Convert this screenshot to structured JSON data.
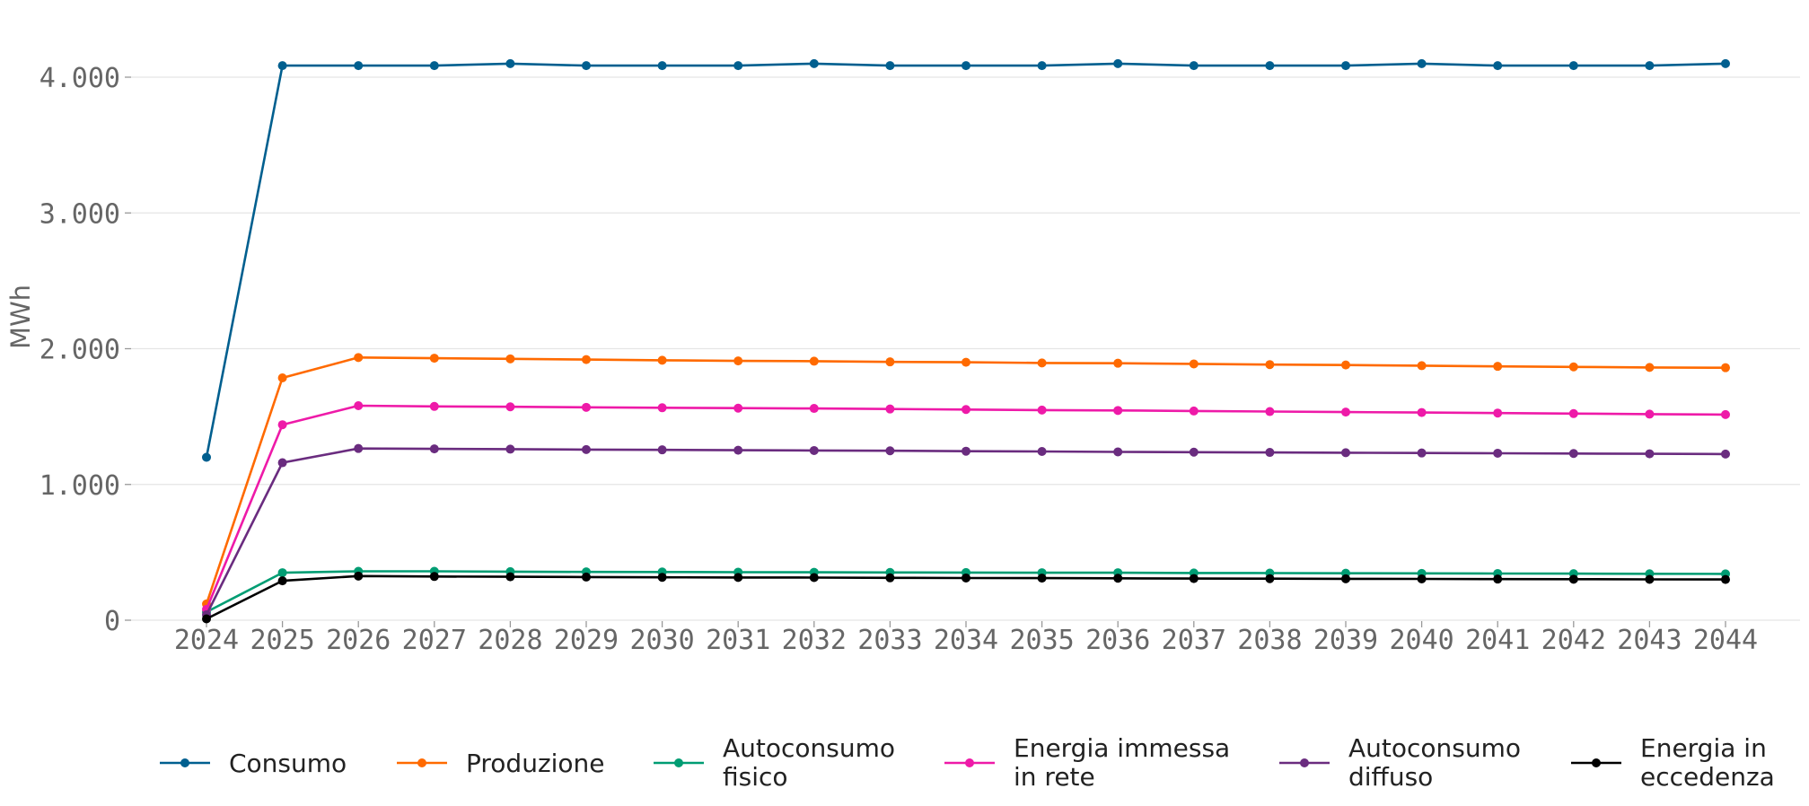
{
  "chart_data": {
    "type": "line",
    "title": "",
    "xlabel": "",
    "ylabel": "MWh",
    "ylim": [
      0,
      4400
    ],
    "yticks": [
      0,
      1000,
      2000,
      3000,
      4000
    ],
    "ytick_labels": [
      "0",
      "1.000",
      "2.000",
      "3.000",
      "4.000"
    ],
    "x": [
      "2024",
      "2025",
      "2026",
      "2027",
      "2028",
      "2029",
      "2030",
      "2031",
      "2032",
      "2033",
      "2034",
      "2035",
      "2036",
      "2037",
      "2038",
      "2039",
      "2040",
      "2041",
      "2042",
      "2043",
      "2044"
    ],
    "grid": "horizontal",
    "legend_position": "bottom",
    "series": [
      {
        "name": "Consumo",
        "color": "#005f8f",
        "values": [
          1200,
          4085,
          4085,
          4085,
          4100,
          4085,
          4085,
          4085,
          4100,
          4085,
          4085,
          4085,
          4100,
          4085,
          4085,
          4085,
          4100,
          4085,
          4085,
          4085,
          4100
        ]
      },
      {
        "name": "Produzione",
        "color": "#ff6a00",
        "values": [
          120,
          1785,
          1935,
          1930,
          1925,
          1920,
          1915,
          1910,
          1908,
          1903,
          1900,
          1895,
          1893,
          1888,
          1883,
          1880,
          1875,
          1870,
          1866,
          1862,
          1860
        ]
      },
      {
        "name": "Autoconsumo fisico",
        "color": "#009d73",
        "values": [
          60,
          350,
          360,
          360,
          358,
          356,
          355,
          354,
          353,
          352,
          351,
          350,
          350,
          348,
          347,
          346,
          345,
          344,
          343,
          342,
          341
        ]
      },
      {
        "name": "Energia immessa in rete",
        "color": "#ee1aa8",
        "values": [
          80,
          1440,
          1580,
          1575,
          1572,
          1568,
          1565,
          1562,
          1560,
          1556,
          1552,
          1548,
          1545,
          1541,
          1537,
          1533,
          1530,
          1526,
          1522,
          1518,
          1515
        ]
      },
      {
        "name": "Autoconsumo diffuso",
        "color": "#6a2c7f",
        "values": [
          40,
          1160,
          1265,
          1262,
          1260,
          1257,
          1255,
          1252,
          1250,
          1248,
          1245,
          1243,
          1240,
          1238,
          1236,
          1234,
          1232,
          1230,
          1228,
          1226,
          1224
        ]
      },
      {
        "name": "Energia in eccedenza",
        "color": "#000000",
        "values": [
          10,
          290,
          325,
          322,
          320,
          318,
          316,
          315,
          314,
          312,
          311,
          310,
          309,
          307,
          306,
          305,
          304,
          303,
          302,
          301,
          300
        ]
      }
    ],
    "legend_labels": [
      [
        "Consumo"
      ],
      [
        "Produzione"
      ],
      [
        "Autoconsumo",
        "fisico"
      ],
      [
        "Energia immessa",
        "in rete"
      ],
      [
        "Autoconsumo",
        "diffuso"
      ],
      [
        "Energia in",
        "eccedenza"
      ]
    ]
  }
}
